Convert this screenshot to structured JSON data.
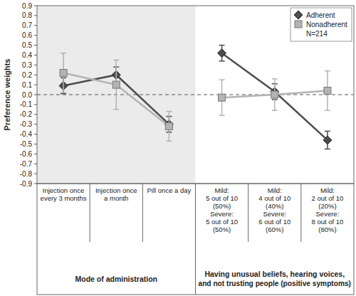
{
  "chart_data": {
    "type": "line",
    "y_label": "Preference weights",
    "categories": [
      "Injection once\nevery 3 months",
      "Injection once\na month",
      "Pill once a day",
      "Mild:\n5 out of 10\n(50%)\nSevere:\n5 out of 10\n(50%)",
      "Mild:\n4 out of 10\n(40%)\nSevere:\n6 out of 10\n(60%)",
      "Mild:\n2 out of 10\n(20%)\nSevere:\n8 out of 10\n(80%)"
    ],
    "groups": [
      {
        "label": "Mode of administration",
        "count": 3
      },
      {
        "label": "Having unusual beliefs, hearing voices,\nand not trusting people (positive symptoms)",
        "count": 3
      }
    ],
    "series": [
      {
        "name": "Adherent",
        "color": "#4d4d4d",
        "marker": "diamond",
        "line_style": "solid",
        "values": [
          0.09,
          0.2,
          -0.3,
          0.42,
          0.03,
          -0.46
        ],
        "errors": [
          0.08,
          0.08,
          0.08,
          0.08,
          0.08,
          0.09
        ]
      },
      {
        "name": "Nonadherent",
        "color": "#b3b3b3",
        "marker": "square",
        "line_style": "solid",
        "values": [
          0.22,
          0.1,
          -0.32,
          -0.03,
          0.0,
          0.04
        ],
        "errors": [
          0.2,
          0.25,
          0.15,
          0.18,
          0.16,
          0.2
        ]
      }
    ],
    "annotation": "N=214",
    "ylim": [
      -0.9,
      0.9
    ],
    "yticks": [
      -0.9,
      -0.8,
      -0.7,
      -0.6,
      -0.5,
      -0.4,
      -0.3,
      -0.2,
      -0.1,
      {
        "value": 0,
        "label": "0.0"
      },
      0.1,
      0.2,
      0.3,
      0.4,
      0.5,
      0.6,
      0.7,
      0.8,
      0.9
    ],
    "grid": false,
    "legend": "upper right"
  }
}
